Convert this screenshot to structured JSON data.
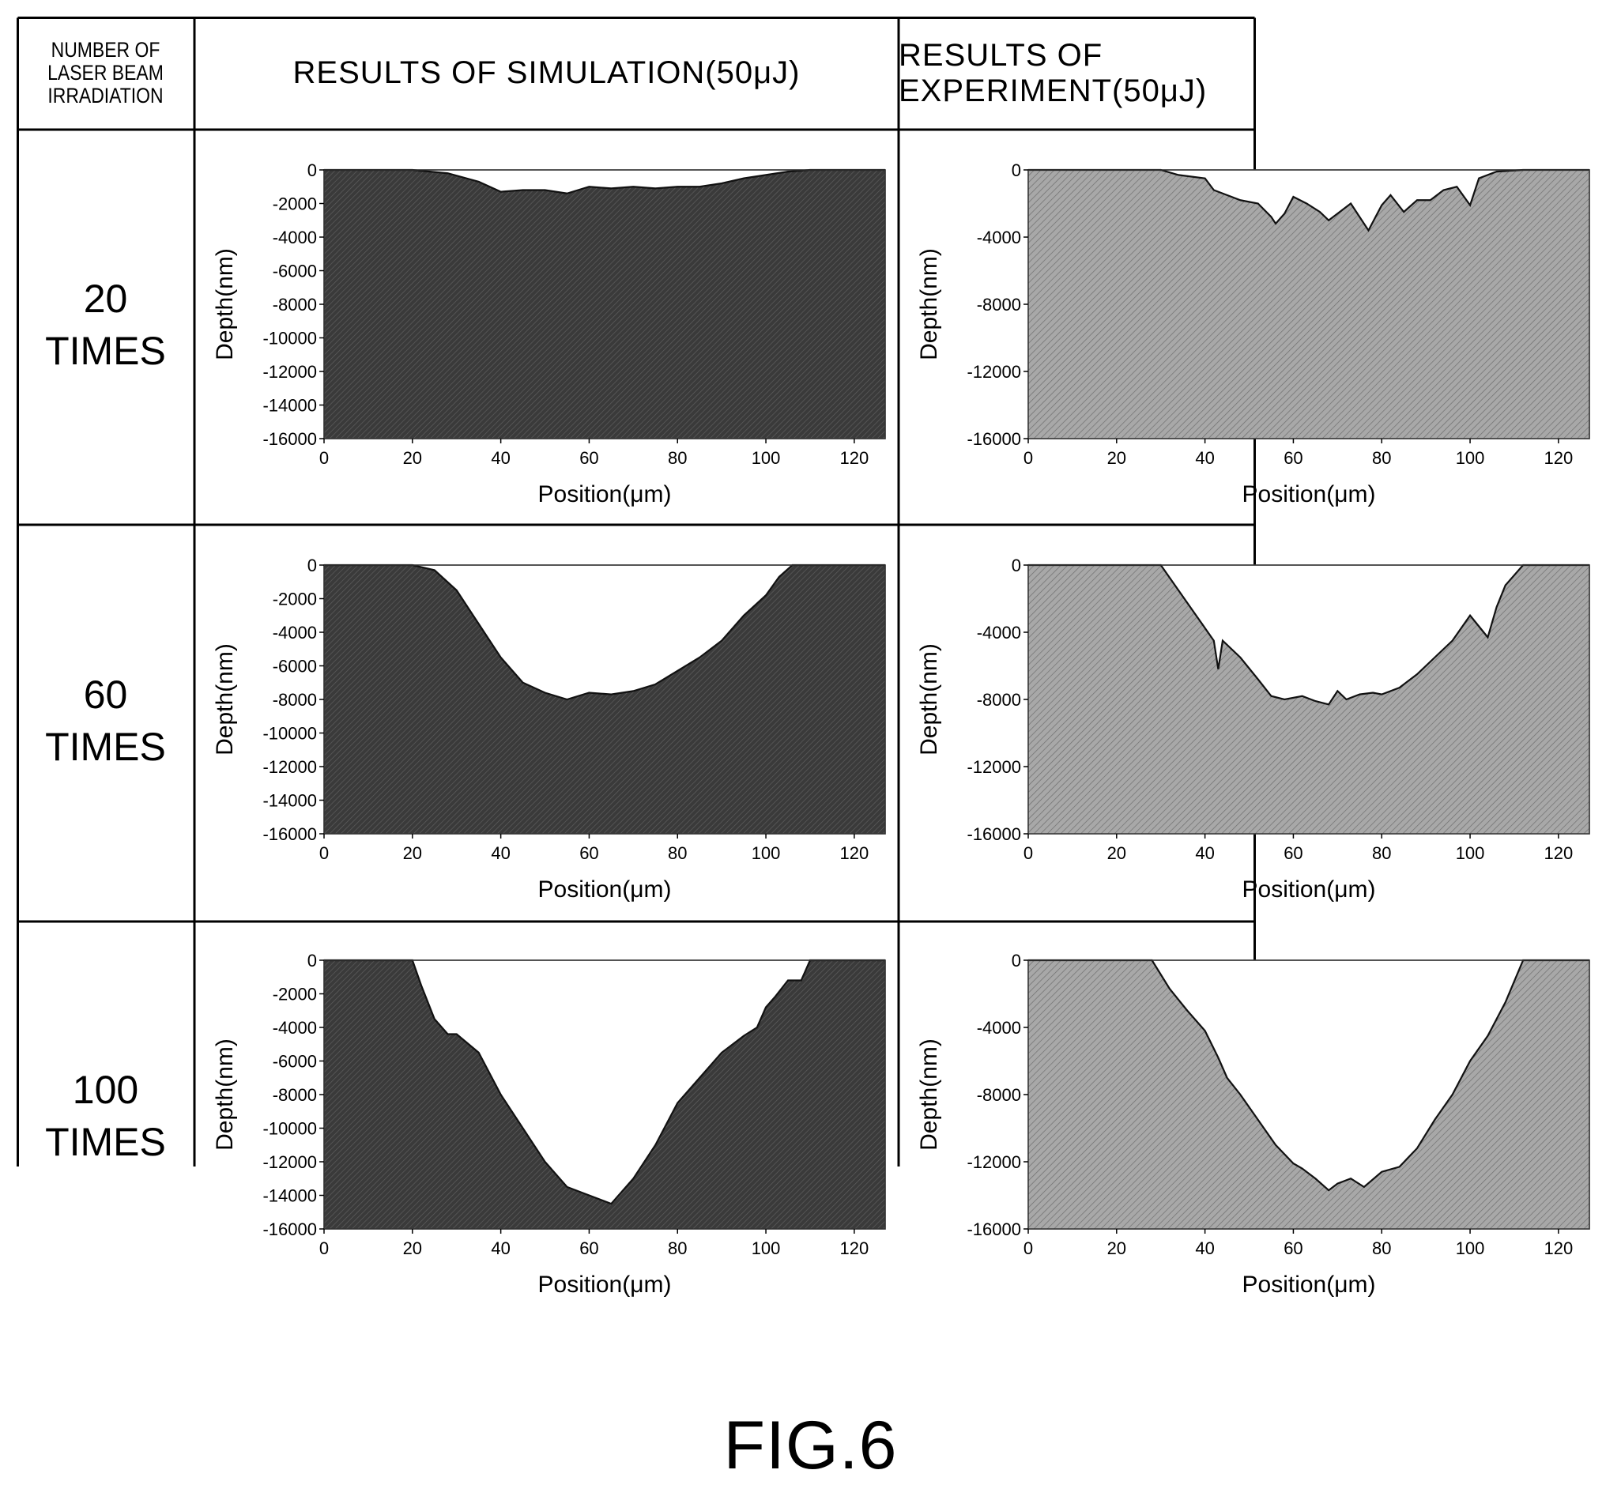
{
  "header": {
    "corner_lines": [
      "NUMBER OF",
      "LASER BEAM",
      "IRRADIATION"
    ],
    "simulation": "RESULTS OF SIMULATION(50μJ)",
    "experiment": "RESULTS OF EXPERIMENT(50μJ)"
  },
  "rows": [
    {
      "count": "20",
      "unit": "TIMES"
    },
    {
      "count": "60",
      "unit": "TIMES"
    },
    {
      "count": "100",
      "unit": "TIMES"
    }
  ],
  "figure_label": "FIG.6",
  "colors": {
    "simulation_fill": "#3a3a3a",
    "experiment_fill": "#a8a8a8",
    "frame": "#000000"
  },
  "chart_data": [
    {
      "type": "area",
      "panel": "20 TIMES / SIMULATION",
      "style": "simulation",
      "xlabel": "Position(μm)",
      "ylabel": "Depth(nm)",
      "xlim": [
        0,
        127
      ],
      "ylim": [
        -16000,
        0
      ],
      "xticks": [
        0,
        20,
        40,
        60,
        80,
        100,
        120
      ],
      "yticks": [
        0,
        -2000,
        -4000,
        -6000,
        -8000,
        -10000,
        -12000,
        -14000,
        -16000
      ],
      "x": [
        0,
        20,
        28,
        35,
        40,
        45,
        50,
        55,
        60,
        65,
        70,
        75,
        80,
        85,
        90,
        95,
        100,
        105,
        110,
        115,
        120,
        127
      ],
      "y": [
        0,
        0,
        -200,
        -700,
        -1300,
        -1200,
        -1200,
        -1400,
        -1000,
        -1100,
        -1000,
        -1100,
        -1000,
        -1000,
        -800,
        -500,
        -300,
        -100,
        0,
        0,
        0,
        0
      ]
    },
    {
      "type": "area",
      "panel": "20 TIMES / EXPERIMENT",
      "style": "experiment",
      "xlabel": "Position(μm)",
      "ylabel": "Depth(nm)",
      "xlim": [
        0,
        127
      ],
      "ylim": [
        -16000,
        0
      ],
      "xticks": [
        0,
        20,
        40,
        60,
        80,
        100,
        120
      ],
      "yticks": [
        0,
        -4000,
        -8000,
        -12000,
        -16000
      ],
      "x": [
        0,
        30,
        34,
        40,
        42,
        45,
        48,
        52,
        55,
        56,
        58,
        60,
        63,
        66,
        68,
        70,
        73,
        75,
        77,
        80,
        82,
        85,
        88,
        91,
        94,
        97,
        100,
        102,
        106,
        112,
        120,
        127
      ],
      "y": [
        0,
        0,
        -300,
        -500,
        -1200,
        -1500,
        -1800,
        -2000,
        -2800,
        -3200,
        -2600,
        -1600,
        -2000,
        -2500,
        -3000,
        -2600,
        -2000,
        -2800,
        -3600,
        -2100,
        -1500,
        -2500,
        -1800,
        -1800,
        -1200,
        -1000,
        -2100,
        -500,
        -100,
        0,
        0,
        0
      ]
    },
    {
      "type": "area",
      "panel": "60 TIMES / SIMULATION",
      "style": "simulation",
      "xlabel": "Position(μm)",
      "ylabel": "Depth(nm)",
      "xlim": [
        0,
        127
      ],
      "ylim": [
        -16000,
        0
      ],
      "xticks": [
        0,
        20,
        40,
        60,
        80,
        100,
        120
      ],
      "yticks": [
        0,
        -2000,
        -4000,
        -6000,
        -8000,
        -10000,
        -12000,
        -14000,
        -16000
      ],
      "x": [
        0,
        5,
        10,
        20,
        25,
        30,
        35,
        40,
        45,
        50,
        55,
        60,
        65,
        70,
        75,
        80,
        85,
        90,
        95,
        100,
        103,
        106,
        110,
        115,
        120,
        127
      ],
      "y": [
        0,
        0,
        200,
        200,
        -300,
        -1500,
        -3500,
        -5500,
        -7000,
        -7600,
        -8000,
        -7600,
        -7700,
        -7500,
        -7100,
        -6300,
        -5500,
        -4500,
        -3000,
        -1800,
        -700,
        200,
        200,
        0,
        0,
        0
      ]
    },
    {
      "type": "area",
      "panel": "60 TIMES / EXPERIMENT",
      "style": "experiment",
      "xlabel": "Position(μm)",
      "ylabel": "Depth(nm)",
      "xlim": [
        0,
        127
      ],
      "ylim": [
        -16000,
        0
      ],
      "xticks": [
        0,
        20,
        40,
        60,
        80,
        100,
        120
      ],
      "yticks": [
        0,
        -4000,
        -8000,
        -12000,
        -16000
      ],
      "x": [
        0,
        30,
        34,
        38,
        42,
        43,
        44,
        48,
        52,
        55,
        58,
        62,
        65,
        68,
        70,
        72,
        75,
        78,
        80,
        84,
        88,
        92,
        96,
        100,
        104,
        106,
        108,
        112,
        120,
        127
      ],
      "y": [
        0,
        0,
        -1500,
        -3000,
        -4500,
        -6200,
        -4500,
        -5500,
        -6800,
        -7800,
        -8000,
        -7800,
        -8100,
        -8300,
        -7500,
        -8000,
        -7700,
        -7600,
        -7700,
        -7300,
        -6500,
        -5500,
        -4500,
        -3000,
        -4300,
        -2500,
        -1200,
        0,
        0,
        0
      ]
    },
    {
      "type": "area",
      "panel": "100 TIMES / SIMULATION",
      "style": "simulation",
      "xlabel": "Position(μm)",
      "ylabel": "Depth(nm)",
      "xlim": [
        0,
        127
      ],
      "ylim": [
        -16000,
        0
      ],
      "xticks": [
        0,
        20,
        40,
        60,
        80,
        100,
        120
      ],
      "yticks": [
        0,
        -2000,
        -4000,
        -6000,
        -8000,
        -10000,
        -12000,
        -14000,
        -16000
      ],
      "x": [
        0,
        8,
        15,
        20,
        22,
        25,
        28,
        30,
        35,
        40,
        45,
        50,
        55,
        60,
        65,
        70,
        75,
        80,
        85,
        90,
        95,
        98,
        100,
        102,
        105,
        108,
        110,
        115,
        127
      ],
      "y": [
        0,
        0,
        300,
        300,
        -1500,
        -3500,
        -4400,
        -4400,
        -5500,
        -8000,
        -10000,
        -12000,
        -13500,
        -14000,
        -14500,
        -13000,
        -11000,
        -8500,
        -7000,
        -5500,
        -4500,
        -4000,
        -2800,
        -2200,
        -1200,
        -1200,
        0,
        0,
        0
      ]
    },
    {
      "type": "area",
      "panel": "100 TIMES / EXPERIMENT",
      "style": "experiment",
      "xlabel": "Position(μm)",
      "ylabel": "Depth(nm)",
      "xlim": [
        0,
        127
      ],
      "ylim": [
        -16000,
        0
      ],
      "xticks": [
        0,
        20,
        40,
        60,
        80,
        100,
        120
      ],
      "yticks": [
        0,
        -4000,
        -8000,
        -12000,
        -16000
      ],
      "x": [
        0,
        28,
        32,
        36,
        40,
        43,
        45,
        48,
        52,
        56,
        60,
        62,
        65,
        68,
        70,
        73,
        76,
        80,
        84,
        88,
        92,
        96,
        100,
        104,
        108,
        112,
        120,
        127
      ],
      "y": [
        0,
        0,
        -1700,
        -3000,
        -4200,
        -5800,
        -7000,
        -8000,
        -9500,
        -11000,
        -12100,
        -12400,
        -13000,
        -13700,
        -13300,
        -13000,
        -13500,
        -12600,
        -12300,
        -11200,
        -9500,
        -8000,
        -6000,
        -4500,
        -2500,
        0,
        0,
        0
      ]
    }
  ]
}
